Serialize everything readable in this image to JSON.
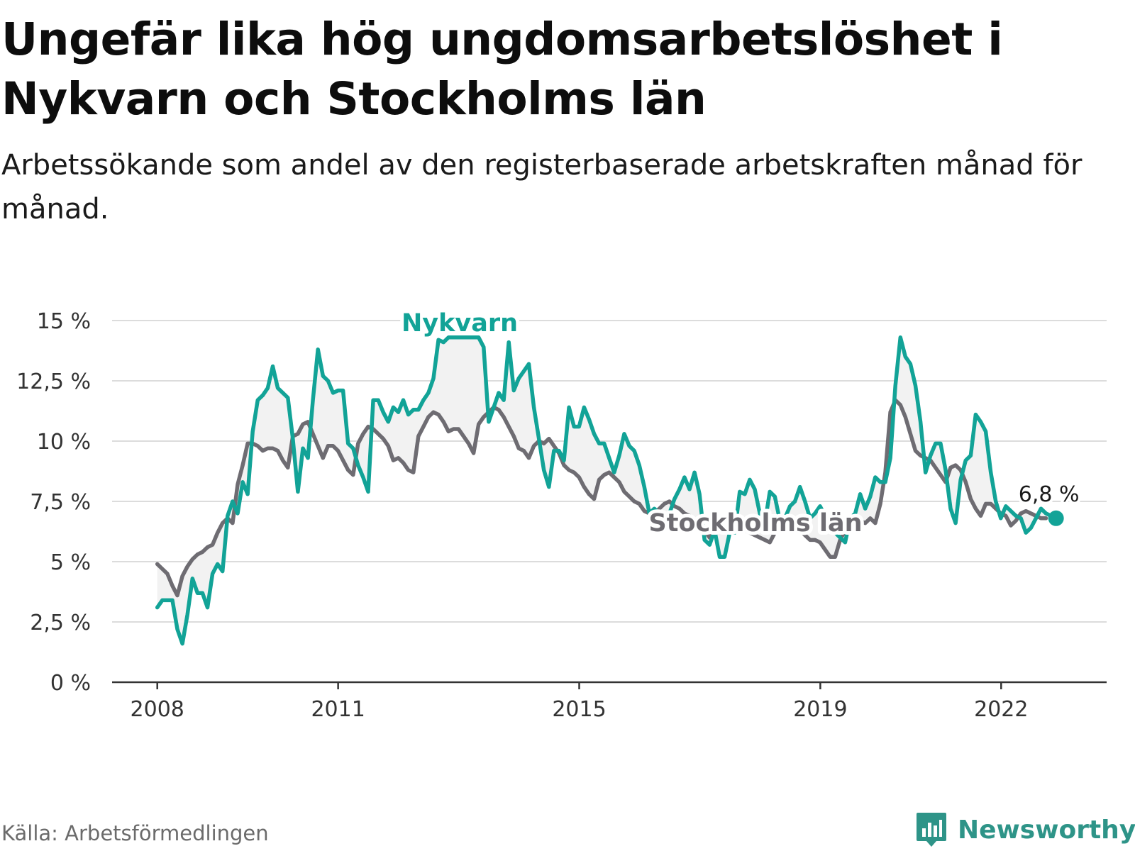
{
  "header": {
    "title": "Ungefär lika hög ungdomsarbetslöshet i Nykvarn och Stockholms län",
    "subtitle": "Arbetssökande som andel av den registerbaserade arbetskraften månad för månad."
  },
  "footer": {
    "source": "Källa: Arbetsförmedlingen",
    "brand": "Newsworthy"
  },
  "colors": {
    "nykvarn": "#12a397",
    "stockholm": "#6e6c72",
    "grid": "#dcdcdc",
    "axis": "#333333",
    "fill": "#f2f2f2",
    "brand": "#2e9488"
  },
  "chart_data": {
    "type": "line",
    "title": "Ungefär lika hög ungdomsarbetslöshet i Nykvarn och Stockholms län",
    "subtitle": "Arbetssökande som andel av den registerbaserade arbetskraften månad för månad.",
    "xlabel": "",
    "ylabel": "",
    "ylim": [
      0,
      15
    ],
    "xlim": [
      2007.25,
      2023.75
    ],
    "grid": true,
    "yticks": [
      0,
      2.5,
      5,
      7.5,
      10,
      12.5,
      15
    ],
    "ytick_labels": [
      "0 %",
      "2,5 %",
      "5 %",
      "7,5 %",
      "10 %",
      "12,5 %",
      "15 %"
    ],
    "xticks": [
      2008,
      2011,
      2015,
      2019,
      2022
    ],
    "xtick_labels": [
      "2008",
      "2011",
      "2015",
      "2019",
      "2022"
    ],
    "end_label": "6,8 %",
    "series": [
      {
        "name": "Nykvarn",
        "label": "Nykvarn",
        "x_start": 2008.0,
        "x_step": 0.0833,
        "values": [
          3.1,
          3.4,
          3.4,
          3.4,
          2.2,
          1.6,
          2.8,
          4.3,
          3.7,
          3.7,
          3.1,
          4.5,
          4.9,
          4.6,
          6.9,
          7.5,
          7.0,
          8.3,
          7.8,
          10.4,
          11.7,
          11.9,
          12.2,
          13.1,
          12.2,
          12.0,
          11.8,
          10.1,
          7.9,
          9.7,
          9.3,
          11.7,
          13.8,
          12.7,
          12.5,
          12.0,
          12.1,
          12.1,
          9.9,
          9.7,
          9.0,
          8.5,
          7.9,
          11.7,
          11.7,
          11.2,
          10.8,
          11.4,
          11.2,
          11.7,
          11.1,
          11.3,
          11.3,
          11.7,
          12.0,
          12.6,
          14.2,
          14.1,
          14.3,
          14.3,
          14.3,
          14.3,
          14.3,
          14.3,
          14.3,
          13.9,
          10.8,
          11.4,
          12.0,
          11.7,
          14.1,
          12.1,
          12.6,
          12.9,
          13.2,
          11.4,
          10.1,
          8.8,
          8.1,
          9.6,
          9.6,
          9.2,
          11.4,
          10.6,
          10.6,
          11.4,
          10.9,
          10.3,
          9.9,
          9.9,
          9.3,
          8.7,
          9.4,
          10.3,
          9.8,
          9.6,
          9.0,
          8.1,
          7.0,
          7.2,
          7.0,
          6.9,
          7.0,
          7.6,
          8.0,
          8.5,
          8.0,
          8.7,
          7.8,
          5.9,
          5.7,
          6.3,
          5.2,
          5.2,
          6.2,
          6.2,
          7.9,
          7.8,
          8.4,
          8.0,
          7.0,
          6.6,
          7.9,
          7.7,
          6.7,
          6.8,
          7.3,
          7.5,
          8.1,
          7.5,
          6.8,
          7.0,
          7.3,
          6.9,
          6.8,
          6.2,
          6.0,
          5.8,
          6.8,
          7.0,
          7.8,
          7.2,
          7.7,
          8.5,
          8.3,
          8.3,
          9.3,
          12.3,
          14.3,
          13.5,
          13.2,
          12.3,
          10.8,
          8.7,
          9.4,
          9.9,
          9.9,
          8.8,
          7.2,
          6.6,
          8.4,
          9.2,
          9.4,
          11.1,
          10.8,
          10.4,
          8.7,
          7.5,
          6.8,
          7.3,
          7.1,
          6.9,
          6.8,
          6.2,
          6.4,
          6.8,
          7.2,
          7.0,
          6.9,
          6.8
        ]
      },
      {
        "name": "Stockholms län",
        "label": "Stockholms län",
        "x_start": 2008.0,
        "x_step": 0.0833,
        "values": [
          4.9,
          4.7,
          4.5,
          4.0,
          3.6,
          4.4,
          4.8,
          5.1,
          5.3,
          5.4,
          5.6,
          5.7,
          6.2,
          6.6,
          6.8,
          6.6,
          8.2,
          9.0,
          9.9,
          9.9,
          9.8,
          9.6,
          9.7,
          9.7,
          9.6,
          9.2,
          8.9,
          10.2,
          10.3,
          10.7,
          10.8,
          10.3,
          9.8,
          9.3,
          9.8,
          9.8,
          9.6,
          9.2,
          8.8,
          8.6,
          9.9,
          10.3,
          10.6,
          10.5,
          10.3,
          10.1,
          9.8,
          9.2,
          9.3,
          9.1,
          8.8,
          8.7,
          10.2,
          10.6,
          11.0,
          11.2,
          11.1,
          10.8,
          10.4,
          10.5,
          10.5,
          10.2,
          9.9,
          9.5,
          10.7,
          11.0,
          11.2,
          11.4,
          11.3,
          11.0,
          10.6,
          10.2,
          9.7,
          9.6,
          9.3,
          9.8,
          10.0,
          9.9,
          10.1,
          9.8,
          9.5,
          9.0,
          8.8,
          8.7,
          8.5,
          8.1,
          7.8,
          7.6,
          8.4,
          8.6,
          8.7,
          8.5,
          8.3,
          7.9,
          7.7,
          7.5,
          7.4,
          7.1,
          7.0,
          7.0,
          7.2,
          7.4,
          7.5,
          7.3,
          7.2,
          7.0,
          6.9,
          6.7,
          6.5,
          6.3,
          6.0,
          6.2,
          6.3,
          6.4,
          6.5,
          6.5,
          6.4,
          6.3,
          6.2,
          6.1,
          6.0,
          5.9,
          5.8,
          6.2,
          6.6,
          6.7,
          6.8,
          6.5,
          6.3,
          6.1,
          5.9,
          5.9,
          5.8,
          5.5,
          5.2,
          5.2,
          5.9,
          6.3,
          6.5,
          6.7,
          6.7,
          6.6,
          6.8,
          6.6,
          7.4,
          8.7,
          11.2,
          11.7,
          11.5,
          11.0,
          10.3,
          9.6,
          9.4,
          9.3,
          9.2,
          8.9,
          8.6,
          8.3,
          8.9,
          9.0,
          8.8,
          8.3,
          7.6,
          7.2,
          6.9,
          7.4,
          7.4,
          7.2,
          7.0,
          6.9,
          6.5,
          6.7,
          7.0,
          7.1,
          7.0,
          6.9,
          6.8,
          6.8
        ]
      }
    ]
  }
}
